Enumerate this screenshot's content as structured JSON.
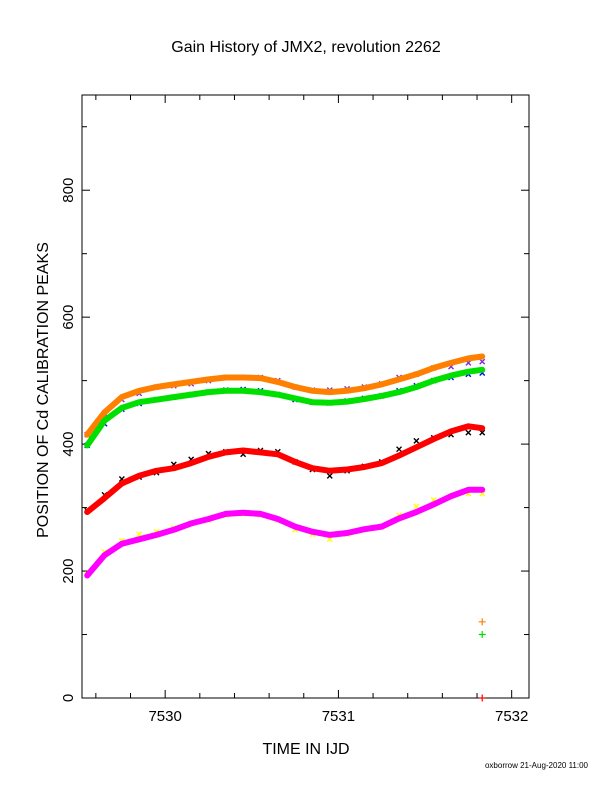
{
  "chart_data": {
    "type": "scatter",
    "title": "Gain History of JMX2, revolution 2262",
    "xlabel": "TIME IN IJD",
    "ylabel": "POSITION OF Cd CALIBRATION PEAKS",
    "xlim": [
      7529.52,
      7532.1
    ],
    "ylim": [
      0,
      950
    ],
    "x_tick_labels": [
      "7530",
      "7531",
      "7532"
    ],
    "y_tick_labels": [
      "0",
      "200",
      "400",
      "600",
      "800"
    ],
    "x_ticks": [
      7530,
      7531,
      7532
    ],
    "y_ticks": [
      0,
      200,
      400,
      600,
      800
    ],
    "footer": "oxborrow 21-Aug-2020 11:00",
    "x": [
      7529.55,
      7529.65,
      7529.75,
      7529.85,
      7529.95,
      7530.05,
      7530.15,
      7530.25,
      7530.35,
      7530.45,
      7530.55,
      7530.65,
      7530.75,
      7530.85,
      7530.95,
      7531.05,
      7531.15,
      7531.25,
      7531.35,
      7531.45,
      7531.55,
      7531.65,
      7531.75,
      7531.83
    ],
    "series": [
      {
        "color": "#7b2fe0",
        "marker": "x",
        "values": [
          415,
          442,
          470,
          480,
          490,
          492,
          495,
          500,
          505,
          505,
          505,
          500,
          490,
          485,
          485,
          487,
          490,
          495,
          505,
          510,
          520,
          522,
          528,
          530
        ]
      },
      {
        "color": "#ff8000",
        "marker": "line",
        "values": [
          415,
          450,
          474,
          484,
          490,
          494,
          498,
          502,
          505,
          505,
          504,
          498,
          490,
          484,
          482,
          484,
          488,
          494,
          502,
          510,
          520,
          528,
          535,
          538
        ]
      },
      {
        "color": "#0000ff",
        "marker": "x",
        "values": [
          398,
          432,
          455,
          464,
          470,
          474,
          478,
          482,
          485,
          486,
          484,
          478,
          470,
          466,
          465,
          468,
          472,
          476,
          484,
          492,
          500,
          505,
          510,
          512
        ]
      },
      {
        "color": "#00e000",
        "marker": "line",
        "values": [
          398,
          437,
          457,
          466,
          470,
          474,
          478,
          482,
          484,
          484,
          482,
          478,
          472,
          466,
          465,
          467,
          471,
          476,
          482,
          490,
          500,
          508,
          514,
          517
        ]
      },
      {
        "color": "#000000",
        "marker": "x",
        "values": [
          295,
          320,
          345,
          348,
          355,
          368,
          376,
          385,
          388,
          384,
          390,
          388,
          372,
          360,
          350,
          358,
          365,
          372,
          392,
          405,
          410,
          415,
          418,
          418
        ]
      },
      {
        "color": "#ff0000",
        "marker": "line",
        "values": [
          293,
          315,
          338,
          350,
          358,
          362,
          370,
          380,
          387,
          390,
          387,
          384,
          372,
          362,
          358,
          360,
          364,
          370,
          382,
          395,
          408,
          420,
          428,
          425
        ]
      },
      {
        "color": "#ffff00",
        "marker": "x",
        "values": [
          195,
          230,
          248,
          258,
          262,
          268,
          275,
          280,
          288,
          290,
          288,
          280,
          265,
          258,
          250,
          258,
          265,
          270,
          288,
          302,
          312,
          318,
          322,
          322
        ]
      },
      {
        "color": "#ff00ff",
        "marker": "line",
        "values": [
          193,
          225,
          243,
          250,
          257,
          265,
          275,
          282,
          290,
          292,
          290,
          282,
          270,
          262,
          257,
          260,
          266,
          270,
          283,
          293,
          305,
          318,
          328,
          328
        ]
      }
    ],
    "outliers": [
      {
        "color": "#ff8000",
        "x": 7531.83,
        "y": 120
      },
      {
        "color": "#00e000",
        "x": 7531.83,
        "y": 100
      },
      {
        "color": "#ff0000",
        "x": 7531.83,
        "y": 0
      }
    ]
  }
}
